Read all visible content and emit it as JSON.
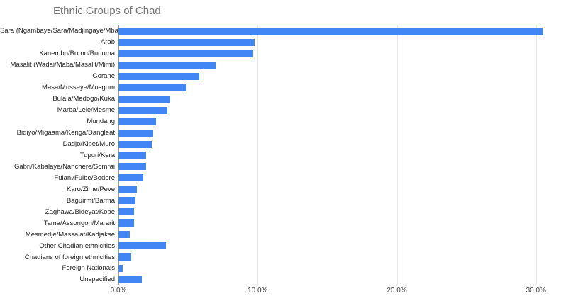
{
  "chart_data": {
    "type": "bar",
    "orientation": "horizontal",
    "title": "Ethnic Groups of Chad",
    "categories": [
      "Sara (Ngambaye/Sara/Madjingaye/Mbaye)",
      "Arab",
      "Kanembu/Bornu/Buduma",
      "Masalit (Wadai/Maba/Masalit/Mimi)",
      "Gorane",
      "Masa/Musseye/Musgum",
      "Bulala/Medogo/Kuka",
      "Marba/Lele/Mesme",
      "Mundang",
      "Bidiyo/Migaama/Kenga/Dangleat",
      "Dadjo/Kibet/Muro",
      "Tupuri/Kera",
      "Gabri/Kabalaye/Nanchere/Somrai",
      "Fulani/Fulbe/Bodore",
      "Karo/Zime/Peve",
      "Baguirmi/Barma",
      "Zaghawa/Bideyat/Kobe",
      "Tama/Assongori/Mararit",
      "Mesmedje/Massalat/Kadjakse",
      "Other Chadian ethnicities",
      "Chadians of foreign ethnicities",
      "Foreign Nationals",
      "Unspecified"
    ],
    "values": [
      30.5,
      9.8,
      9.7,
      7.0,
      5.8,
      4.9,
      3.7,
      3.5,
      2.7,
      2.5,
      2.4,
      2.0,
      2.0,
      1.8,
      1.3,
      1.2,
      1.1,
      1.1,
      0.8,
      3.4,
      0.9,
      0.3,
      1.7
    ],
    "unit": "%",
    "xlabel": "",
    "ylabel": "",
    "xlim": [
      0,
      32
    ],
    "x_ticks": [
      {
        "value": 0,
        "label": "0.0%"
      },
      {
        "value": 10,
        "label": "10.0%"
      },
      {
        "value": 20,
        "label": "20.0%"
      },
      {
        "value": 30,
        "label": "30.0%"
      }
    ],
    "grid": true,
    "legend": "none",
    "colors": {
      "bar": "#4285f4",
      "title_text": "#757575",
      "category_text": "#222222",
      "tick_text": "#444444",
      "gridline": "#e8e8e8",
      "baseline": "#9a9a9a",
      "background": "#ffffff"
    }
  }
}
